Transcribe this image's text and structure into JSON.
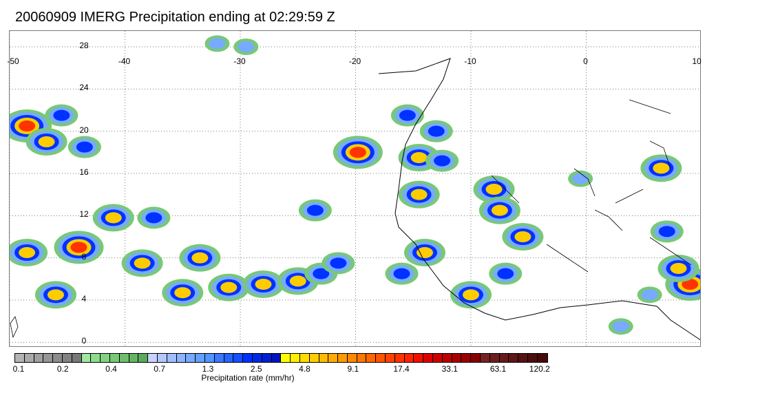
{
  "title": "20060909 IMERG Precipitation ending at 02:29:59 Z",
  "map": {
    "lon_ticks": [
      -50,
      -40,
      -30,
      -20,
      -10,
      0,
      10
    ],
    "lat_ticks": [
      28,
      24,
      20,
      16,
      12,
      8,
      4,
      0
    ],
    "lon_range": [
      -50,
      10
    ],
    "lat_range": [
      -0.5,
      29.5
    ],
    "grid": true
  },
  "colorbar": {
    "label": "Precipitation rate (mm/hr)",
    "ticks": [
      "0.1",
      "0.2",
      "0.4",
      "0.7",
      "1.3",
      "2.5",
      "4.8",
      "9.1",
      "17.4",
      "33.1",
      "63.1",
      "120.2"
    ],
    "colors": [
      "#b4b4b4",
      "#aaaaaa",
      "#a0a0a0",
      "#969696",
      "#8c8c8c",
      "#828282",
      "#787878",
      "#a0e6a0",
      "#8cdc8c",
      "#82d282",
      "#78c878",
      "#6ebe6e",
      "#64b464",
      "#5aaa5a",
      "#c8d2ff",
      "#b4c8ff",
      "#a0beff",
      "#8cb4ff",
      "#78aaff",
      "#64a0ff",
      "#5096ff",
      "#3c78ff",
      "#2864ff",
      "#1450ff",
      "#0032ff",
      "#0028e6",
      "#001ed2",
      "#0014be",
      "#ffff00",
      "#ffee00",
      "#ffdc00",
      "#ffcc00",
      "#ffbb00",
      "#ffaa00",
      "#ff9900",
      "#ff8800",
      "#ff7700",
      "#ff6600",
      "#ff5500",
      "#ff4400",
      "#ff3300",
      "#ff2200",
      "#ee1100",
      "#dd0000",
      "#cc0000",
      "#bb0000",
      "#aa0000",
      "#990000",
      "#880000",
      "#772222",
      "#6e1e1e",
      "#661a1a",
      "#5e1616",
      "#561212",
      "#4e0e0e",
      "#460a0a"
    ]
  },
  "precip_cells": [
    {
      "lon": -48.5,
      "lat": 20.5,
      "peak": 4
    },
    {
      "lon": -46.8,
      "lat": 19.0,
      "peak": 3
    },
    {
      "lon": -45.5,
      "lat": 21.5,
      "peak": 2
    },
    {
      "lon": -43.5,
      "lat": 18.5,
      "peak": 2
    },
    {
      "lon": -48.5,
      "lat": 8.5,
      "peak": 3
    },
    {
      "lon": -44.0,
      "lat": 9.0,
      "peak": 4
    },
    {
      "lon": -46.0,
      "lat": 4.5,
      "peak": 3
    },
    {
      "lon": -41.0,
      "lat": 11.8,
      "peak": 3
    },
    {
      "lon": -37.5,
      "lat": 11.8,
      "peak": 2
    },
    {
      "lon": -38.5,
      "lat": 7.5,
      "peak": 3
    },
    {
      "lon": -33.5,
      "lat": 8.0,
      "peak": 3
    },
    {
      "lon": -35.0,
      "lat": 4.7,
      "peak": 3
    },
    {
      "lon": -31.0,
      "lat": 5.2,
      "peak": 3
    },
    {
      "lon": -28.0,
      "lat": 5.5,
      "peak": 3
    },
    {
      "lon": -25.0,
      "lat": 5.8,
      "peak": 3
    },
    {
      "lon": -23.0,
      "lat": 6.5,
      "peak": 2
    },
    {
      "lon": -21.5,
      "lat": 7.5,
      "peak": 2
    },
    {
      "lon": -23.5,
      "lat": 12.5,
      "peak": 2
    },
    {
      "lon": -19.8,
      "lat": 18.0,
      "peak": 4
    },
    {
      "lon": -15.5,
      "lat": 21.5,
      "peak": 2
    },
    {
      "lon": -13.0,
      "lat": 20.0,
      "peak": 2
    },
    {
      "lon": -14.5,
      "lat": 17.5,
      "peak": 3
    },
    {
      "lon": -12.5,
      "lat": 17.2,
      "peak": 2
    },
    {
      "lon": -14.5,
      "lat": 14.0,
      "peak": 3
    },
    {
      "lon": -14.0,
      "lat": 8.5,
      "peak": 3
    },
    {
      "lon": -16.0,
      "lat": 6.5,
      "peak": 2
    },
    {
      "lon": -10.0,
      "lat": 4.5,
      "peak": 3
    },
    {
      "lon": -8.0,
      "lat": 14.5,
      "peak": 3
    },
    {
      "lon": -7.5,
      "lat": 12.5,
      "peak": 3
    },
    {
      "lon": -5.5,
      "lat": 10.0,
      "peak": 3
    },
    {
      "lon": -7.0,
      "lat": 6.5,
      "peak": 2
    },
    {
      "lon": 6.5,
      "lat": 16.5,
      "peak": 3
    },
    {
      "lon": 7.0,
      "lat": 10.5,
      "peak": 2
    },
    {
      "lon": 9.0,
      "lat": 5.5,
      "peak": 4
    },
    {
      "lon": 8.0,
      "lat": 7.0,
      "peak": 3
    },
    {
      "lon": 3.0,
      "lat": 1.5,
      "peak": 1
    },
    {
      "lon": -29.5,
      "lat": 28.0,
      "peak": 1
    },
    {
      "lon": -32.0,
      "lat": 28.3,
      "peak": 1
    },
    {
      "lon": -0.5,
      "lat": 15.5,
      "peak": 1
    },
    {
      "lon": 5.5,
      "lat": 4.5,
      "peak": 1
    }
  ]
}
